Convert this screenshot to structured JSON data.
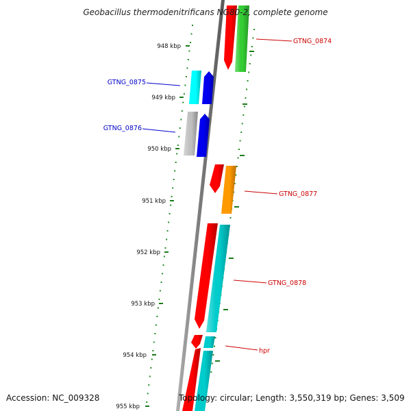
{
  "header": {
    "title": "Geobacillus thermodenitrificans NG80-2, complete genome"
  },
  "footer": {
    "accession": "Accession: NC_009328",
    "topology": "Topology: circular; Length: 3,550,319 bp; Genes: 3,509"
  },
  "ticks": [
    {
      "label": "948 kbp",
      "kbp": 948
    },
    {
      "label": "949 kbp",
      "kbp": 949
    },
    {
      "label": "950 kbp",
      "kbp": 950
    },
    {
      "label": "951 kbp",
      "kbp": 951
    },
    {
      "label": "952 kbp",
      "kbp": 952
    },
    {
      "label": "953 kbp",
      "kbp": 953
    },
    {
      "label": "954 kbp",
      "kbp": 954
    },
    {
      "label": "955 kbp",
      "kbp": 955
    }
  ],
  "genes": [
    {
      "name": "GTNG_0874",
      "strand": "reverse",
      "cds_color": "#ff0000",
      "feature_color": "#33cc33",
      "label_color": "#cc0000"
    },
    {
      "name": "GTNG_0875",
      "strand": "forward",
      "cds_color": "#0000ee",
      "feature_color": "#00ffff",
      "label_color": "#0000cc"
    },
    {
      "name": "GTNG_0876",
      "strand": "forward",
      "cds_color": "#0000ee",
      "feature_color": "#c0c0c0",
      "label_color": "#0000cc"
    },
    {
      "name": "GTNG_0877",
      "strand": "reverse",
      "cds_color": "#ff0000",
      "feature_color": "#ff9900",
      "label_color": "#cc0000"
    },
    {
      "name": "GTNG_0878",
      "strand": "reverse",
      "cds_color": "#ff0000",
      "feature_color": "#00cccc",
      "label_color": "#cc0000"
    },
    {
      "name": "hpr",
      "strand": "reverse",
      "cds_color": "#ff0000",
      "feature_color": "#00cccc",
      "label_color": "#cc0000"
    }
  ],
  "colors": {
    "backbone": "#808080",
    "gc_skew": "#228b22",
    "tick": "#1a7a1a"
  }
}
